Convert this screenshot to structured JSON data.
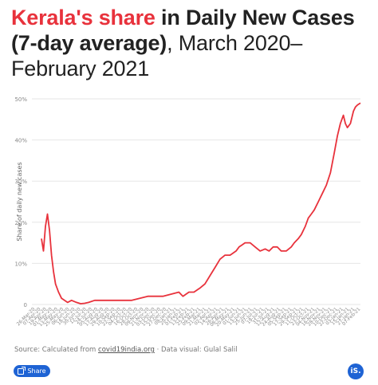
{
  "header": {
    "title_highlight": "Kerala's share",
    "title_bold": " in Daily New Cases (7-day average)",
    "title_rest": ", March 2020–February 2021"
  },
  "footer": {
    "source_prefix": "Source: Calculated from ",
    "source_link": "covid19india.org",
    "source_suffix": " · Data visual: Gulal Salil",
    "share_label": "Share",
    "logo_text": "iS."
  },
  "colors": {
    "line": "#e8323c",
    "accent": "#e8323c",
    "button": "#1e63d4",
    "grid": "#e6e6e6"
  },
  "icons": {
    "share": "share-icon",
    "logo": "indiaspend-logo-icon"
  },
  "chart_data": {
    "type": "line",
    "title": "Kerala's share in Daily New Cases (7-day average), March 2020–February 2021",
    "xlabel": "",
    "ylabel": "Share of daily new cases",
    "ylim": [
      0,
      50
    ],
    "y_ticks": [
      "0",
      "10%",
      "20%",
      "30%",
      "40%",
      "50%"
    ],
    "grid": true,
    "x_ticks": [
      "26-Mar-20",
      "07-Apr-20",
      "19-Apr-20",
      "01-May-20",
      "13-May-20",
      "25-May-20",
      "06-Jun-20",
      "18-Jun-20",
      "30-Jun-20",
      "12-Jul-20",
      "24-Jul-20",
      "05-Aug-20",
      "17-Aug-20",
      "29-Aug-20",
      "10-Sep-20",
      "22-Sep-20",
      "04-Oct-20",
      "16-Oct-20",
      "28-Oct-20",
      "09-Nov-20",
      "21-Nov-20",
      "03-Dec-20",
      "15-Dec-20",
      "27-Dec-20",
      "08-Jan-21",
      "20-Jan-21",
      "01-Feb-21",
      "13-Feb-21",
      "25-Feb-21",
      "09-Mar-21",
      "21-Mar-21",
      "02-Apr-21",
      "14-Apr-21",
      "26-Apr-21",
      "08-May-21",
      "20-May-21",
      "01-Jun-21",
      "13-Jun-21",
      "25-Jun-21",
      "07-Jul-21",
      "19-Jul-21",
      "31-Jul-21",
      "12-Aug-21",
      "24-Aug-21",
      "05-Sep-21",
      "17-Sep-21",
      "29-Sep-21",
      "11-Oct-21",
      "23-Oct-21",
      "04-Nov-21",
      "16-Nov-21",
      "28-Nov-21",
      "10-Dec-21",
      "22-Dec-21",
      "03-Jan-21",
      "15-Jan-21",
      "27-Jan-21",
      "07-Feb-21"
    ],
    "series": [
      {
        "name": "",
        "x": [
          "2020-03-26",
          "2020-03-28",
          "2020-03-30",
          "2020-04-01",
          "2020-04-03",
          "2020-04-05",
          "2020-04-07",
          "2020-04-09",
          "2020-04-12",
          "2020-04-15",
          "2020-04-18",
          "2020-04-21",
          "2020-04-25",
          "2020-04-30",
          "2020-05-04",
          "2020-05-08",
          "2020-05-12",
          "2020-05-18",
          "2020-05-25",
          "2020-06-10",
          "2020-06-24",
          "2020-07-10",
          "2020-07-25",
          "2020-08-10",
          "2020-08-14",
          "2020-08-20",
          "2020-08-25",
          "2020-08-31",
          "2020-09-05",
          "2020-09-10",
          "2020-09-15",
          "2020-09-20",
          "2020-09-25",
          "2020-09-30",
          "2020-10-03",
          "2020-10-06",
          "2020-10-09",
          "2020-10-12",
          "2020-10-15",
          "2020-10-20",
          "2020-10-25",
          "2020-10-30",
          "2020-11-04",
          "2020-11-08",
          "2020-11-12",
          "2020-11-16",
          "2020-11-20",
          "2020-11-25",
          "2020-11-30",
          "2020-12-03",
          "2020-12-07",
          "2020-12-10",
          "2020-12-14",
          "2020-12-17",
          "2020-12-20",
          "2020-12-23",
          "2020-12-27",
          "2020-12-31",
          "2021-01-04",
          "2021-01-08",
          "2021-01-12",
          "2021-01-15",
          "2021-01-18",
          "2021-01-21",
          "2021-01-23",
          "2021-01-25",
          "2021-01-28",
          "2021-01-31",
          "2021-02-02",
          "2021-02-04",
          "2021-02-07"
        ],
        "y": [
          16,
          13,
          19,
          22,
          18,
          12,
          8,
          5,
          3,
          1.5,
          1,
          0.5,
          1,
          0.5,
          0.2,
          0.3,
          0.5,
          1,
          1,
          1,
          1,
          2,
          2,
          3,
          2,
          3,
          3,
          4,
          5,
          7,
          9,
          11,
          12,
          12,
          12.5,
          13,
          14,
          14.5,
          15,
          15,
          14,
          13,
          13.5,
          13,
          14,
          14,
          13,
          13,
          14,
          15,
          16,
          17,
          19,
          21,
          22,
          23,
          25,
          27,
          29,
          32,
          37,
          41,
          44,
          46,
          44,
          43,
          44,
          47,
          48,
          48.5,
          49
        ]
      }
    ]
  }
}
